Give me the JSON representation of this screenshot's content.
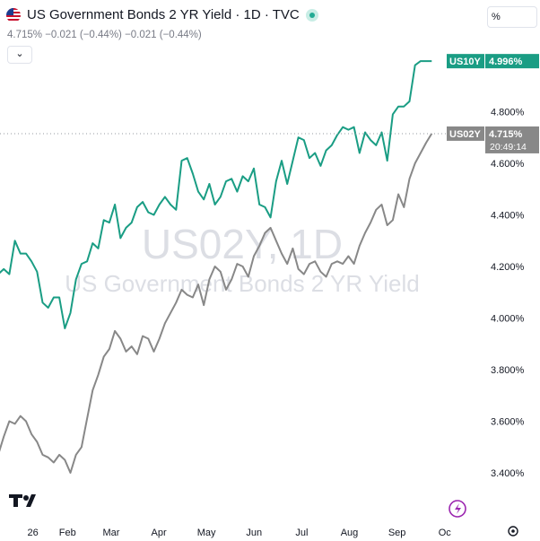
{
  "header": {
    "title": "US Government Bonds 2 YR Yield · 1D · TVC",
    "ohlc": "4.715% −0.021 (−0.44%) −0.021 (−0.44%)",
    "collapse_icon": "⌄",
    "scale_label": "%"
  },
  "watermark": {
    "symbol": "US02Y, 1D",
    "description": "US Government Bonds 2 YR Yield"
  },
  "colors": {
    "us02y": "#888888",
    "us10y": "#1a9d84",
    "grid": "#f0f3fa",
    "crosshair": "#9598a1"
  },
  "chart_data": {
    "type": "line",
    "title": "US Government Bonds 2 YR Yield · 1D · TVC",
    "x_tick_labels": [
      "26",
      "Feb",
      "Mar",
      "Apr",
      "May",
      "Jun",
      "Jul",
      "Aug",
      "Sep",
      "Oc"
    ],
    "y_tick_labels": [
      "3.400%",
      "3.600%",
      "3.800%",
      "4.000%",
      "4.200%",
      "4.400%",
      "4.600%",
      "4.800%"
    ],
    "y_ticks": [
      3.4,
      3.6,
      3.8,
      4.0,
      4.2,
      4.4,
      4.6,
      4.8
    ],
    "ylim": [
      3.31,
      5.18
    ],
    "x_range": [
      -3,
      58
    ],
    "x_label_positions": [
      0,
      5.5,
      11,
      17,
      23,
      29,
      35,
      41,
      47,
      53
    ],
    "series": [
      {
        "name": "US10Y",
        "last_label": "4.996%",
        "values": [
          4.18,
          4.17,
          4.19,
          4.17,
          4.3,
          4.25,
          4.25,
          4.22,
          4.18,
          4.06,
          4.04,
          4.08,
          4.08,
          3.96,
          4.02,
          4.15,
          4.21,
          4.22,
          4.29,
          4.27,
          4.38,
          4.37,
          4.44,
          4.31,
          4.35,
          4.37,
          4.43,
          4.45,
          4.41,
          4.4,
          4.44,
          4.47,
          4.44,
          4.42,
          4.61,
          4.62,
          4.56,
          4.49,
          4.46,
          4.52,
          4.44,
          4.47,
          4.53,
          4.54,
          4.49,
          4.55,
          4.53,
          4.58,
          4.44,
          4.43,
          4.39,
          4.53,
          4.61,
          4.52,
          4.61,
          4.7,
          4.69,
          4.62,
          4.64,
          4.59,
          4.65,
          4.67,
          4.71,
          4.74,
          4.73,
          4.74,
          4.64,
          4.72,
          4.69,
          4.67,
          4.72,
          4.61,
          4.79,
          4.82,
          4.82,
          4.84,
          4.98,
          4.996,
          4.996,
          4.996
        ],
        "x_start": -2.8,
        "x_end": 52.5
      },
      {
        "name": "US02Y",
        "last_label": "4.715%",
        "last_time": "20:49:14",
        "values": [
          3.45,
          3.47,
          3.54,
          3.6,
          3.59,
          3.62,
          3.6,
          3.55,
          3.52,
          3.47,
          3.46,
          3.44,
          3.47,
          3.45,
          3.4,
          3.47,
          3.5,
          3.61,
          3.72,
          3.78,
          3.85,
          3.88,
          3.95,
          3.92,
          3.87,
          3.89,
          3.86,
          3.93,
          3.92,
          3.87,
          3.92,
          3.98,
          4.02,
          4.06,
          4.11,
          4.09,
          4.08,
          4.13,
          4.05,
          4.15,
          4.2,
          4.18,
          4.11,
          4.15,
          4.21,
          4.2,
          4.16,
          4.24,
          4.28,
          4.33,
          4.35,
          4.3,
          4.25,
          4.21,
          4.27,
          4.19,
          4.17,
          4.21,
          4.22,
          4.18,
          4.16,
          4.21,
          4.22,
          4.21,
          4.24,
          4.21,
          4.28,
          4.33,
          4.37,
          4.42,
          4.44,
          4.36,
          4.38,
          4.48,
          4.43,
          4.54,
          4.6,
          4.64,
          4.68,
          4.715
        ],
        "x_start": -2.8,
        "x_end": 52.5
      }
    ],
    "grid": false,
    "legend": "none"
  },
  "footer": {
    "brand": "TV",
    "lightning_icon": "lightning-icon",
    "settings_icon": "gear-icon"
  }
}
